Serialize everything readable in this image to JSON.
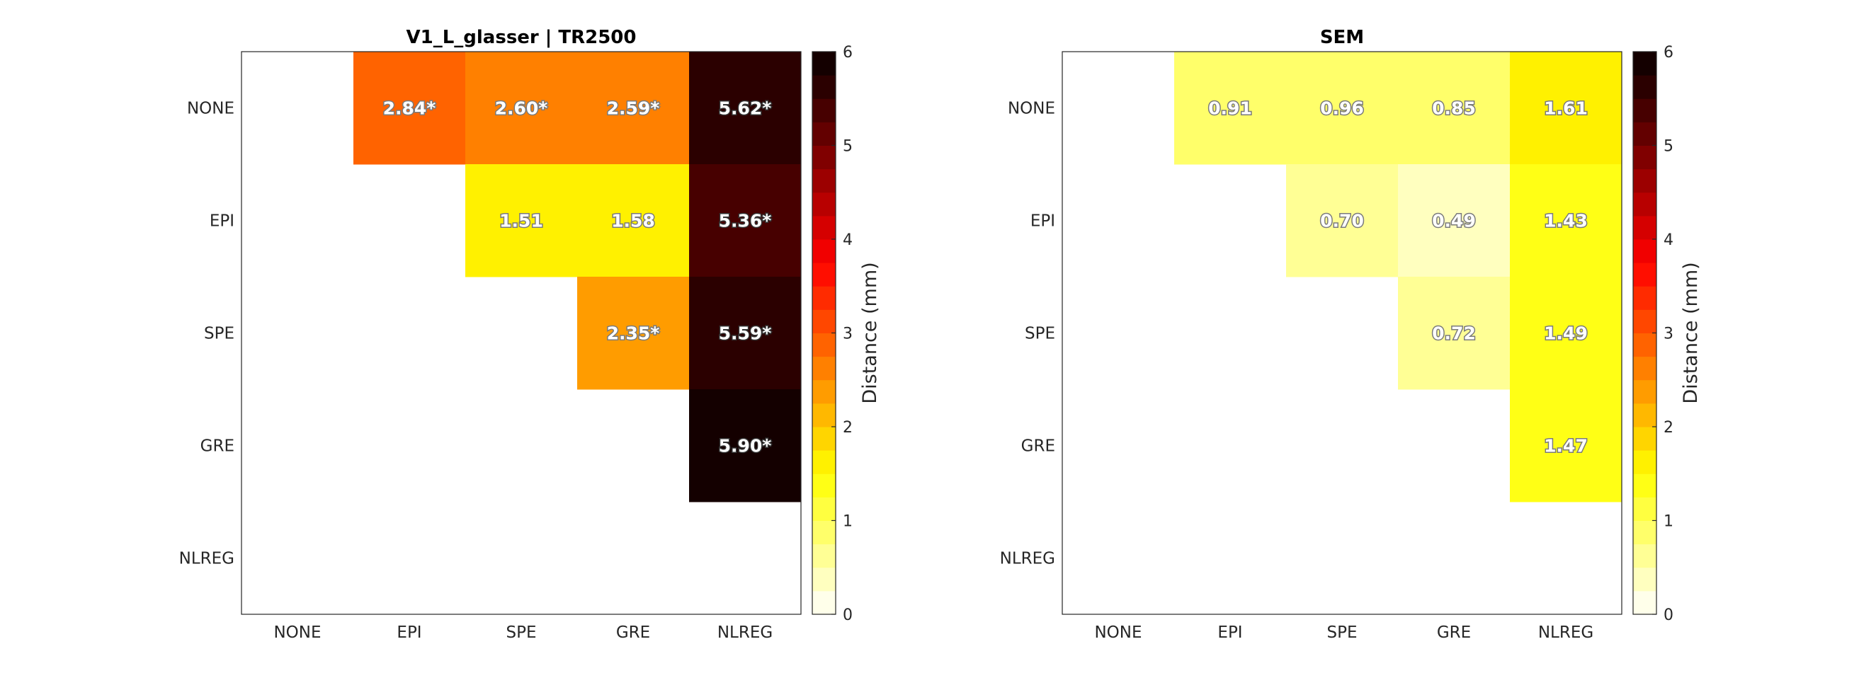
{
  "chart_data": [
    {
      "type": "heatmap",
      "title": "V1_L_glasser | TR2500",
      "rows": [
        "NONE",
        "EPI",
        "SPE",
        "GRE",
        "NLREG"
      ],
      "columns": [
        "NONE",
        "EPI",
        "SPE",
        "GRE",
        "NLREG"
      ],
      "values": [
        [
          null,
          2.84,
          2.6,
          2.59,
          5.62
        ],
        [
          null,
          null,
          1.51,
          1.58,
          5.36
        ],
        [
          null,
          null,
          null,
          2.35,
          5.59
        ],
        [
          null,
          null,
          null,
          null,
          5.9
        ],
        [
          null,
          null,
          null,
          null,
          null
        ]
      ],
      "labels": [
        [
          null,
          "2.84*",
          "2.60*",
          "2.59*",
          "5.62*"
        ],
        [
          null,
          null,
          "1.51",
          "1.58",
          "5.36*"
        ],
        [
          null,
          null,
          null,
          "2.35*",
          "5.59*"
        ],
        [
          null,
          null,
          null,
          null,
          "5.90*"
        ],
        [
          null,
          null,
          null,
          null,
          null
        ]
      ],
      "colorbar": {
        "label": "Distance (mm)",
        "range": [
          0,
          6
        ],
        "ticks": [
          "0",
          "1",
          "2",
          "3",
          "4",
          "5",
          "6"
        ],
        "levels": 24,
        "colormap": "hot-reversed"
      }
    },
    {
      "type": "heatmap",
      "title": "SEM",
      "rows": [
        "NONE",
        "EPI",
        "SPE",
        "GRE",
        "NLREG"
      ],
      "columns": [
        "NONE",
        "EPI",
        "SPE",
        "GRE",
        "NLREG"
      ],
      "values": [
        [
          null,
          0.91,
          0.96,
          0.85,
          1.61
        ],
        [
          null,
          null,
          0.7,
          0.49,
          1.43
        ],
        [
          null,
          null,
          null,
          0.72,
          1.49
        ],
        [
          null,
          null,
          null,
          null,
          1.47
        ],
        [
          null,
          null,
          null,
          null,
          null
        ]
      ],
      "labels": [
        [
          null,
          "0.91",
          "0.96",
          "0.85",
          "1.61"
        ],
        [
          null,
          null,
          "0.70",
          "0.49",
          "1.43"
        ],
        [
          null,
          null,
          null,
          "0.72",
          "1.49"
        ],
        [
          null,
          null,
          null,
          null,
          "1.47"
        ],
        [
          null,
          null,
          null,
          null,
          null
        ]
      ],
      "colorbar": {
        "label": "Distance (mm)",
        "range": [
          0,
          6
        ],
        "ticks": [
          "0",
          "1",
          "2",
          "3",
          "4",
          "5",
          "6"
        ],
        "levels": 24,
        "colormap": "hot-reversed"
      }
    }
  ]
}
